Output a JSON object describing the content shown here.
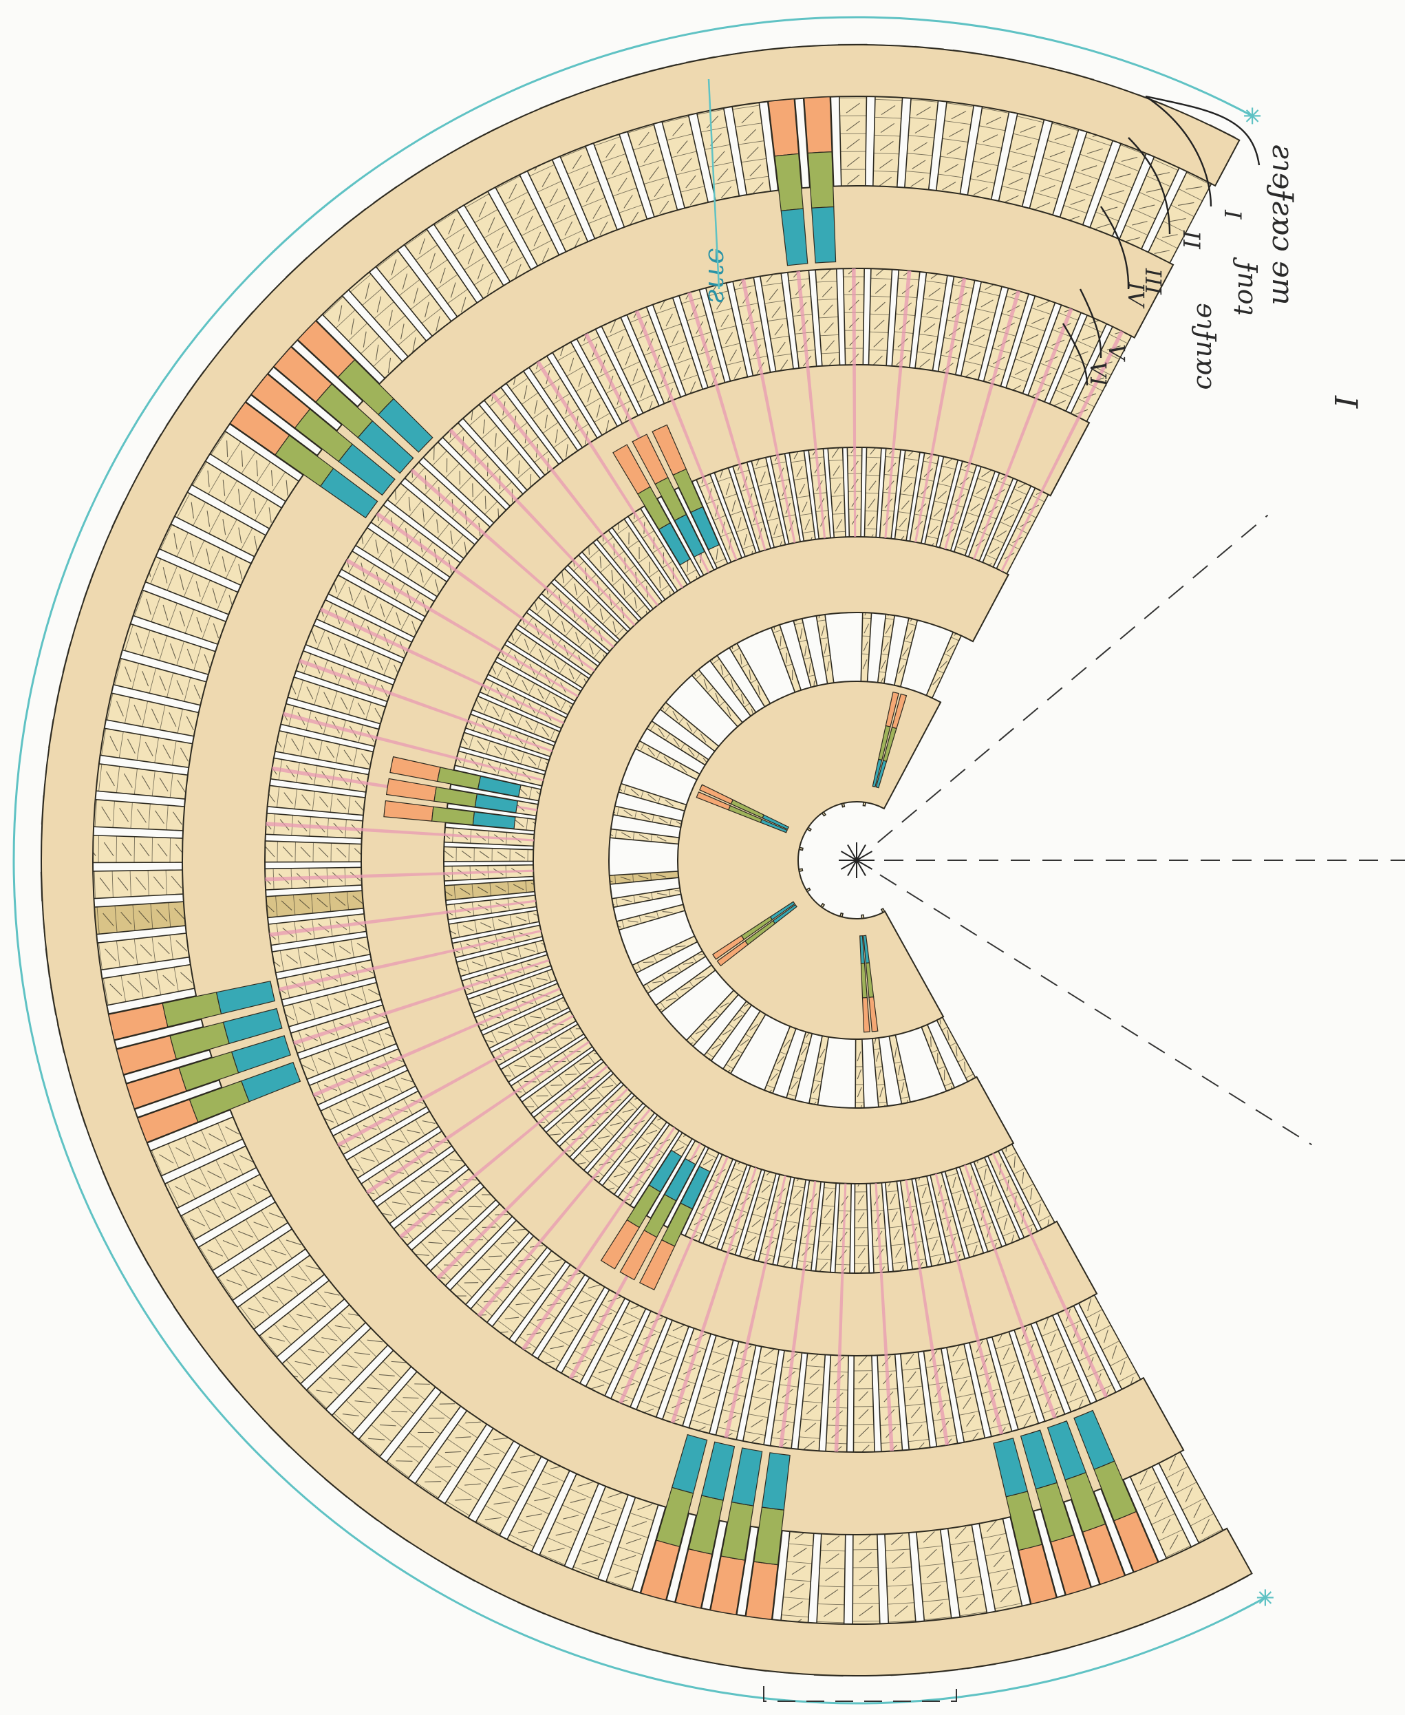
{
  "diagram": {
    "kind": "crochet-stitch-chart-fan",
    "colors": {
      "base": "#f3e3b9",
      "rib_band": "#eed9b0",
      "orange": "#f5a874",
      "green": "#9fb35a",
      "teal": "#37a9b5",
      "pink": "#e89ab3",
      "grid_line": "#2d2a20",
      "guide_circle": "#5fc2c4",
      "center_rib": "#d9c387"
    },
    "icons": [
      "star-marker-icon"
    ]
  },
  "annotations": {
    "sections": {
      "t1": "I",
      "t2": "II",
      "t3": "III",
      "t4": "IV",
      "t5": "V",
      "t6": "VI"
    },
    "handwritten": {
      "roman_one": "I",
      "label_1": "ƨɿɘɈƨɒɔ ɘm",
      "label_2": "Ɉnoʇ",
      "label_3": "ɘɿɈnɒɔ",
      "blue_note": "ɘɿɿƨ"
    }
  }
}
